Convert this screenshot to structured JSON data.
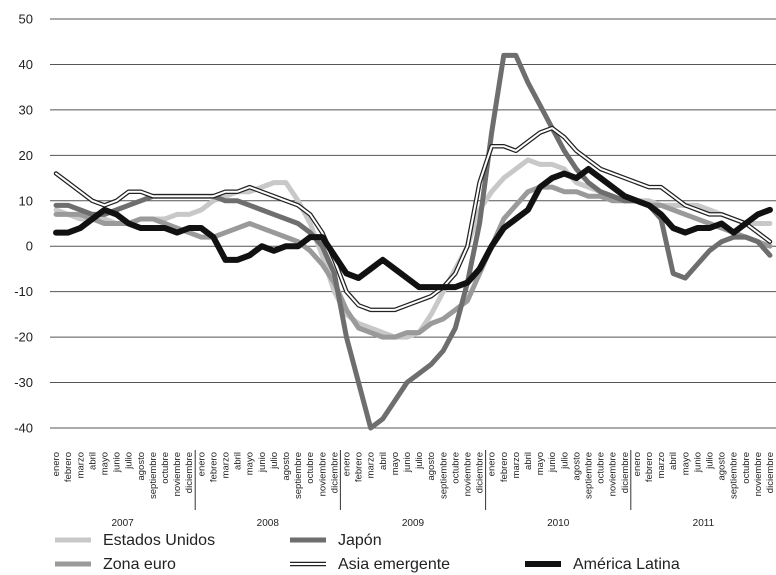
{
  "chart_data": {
    "type": "line",
    "title": "",
    "xlabel": "",
    "ylabel": "",
    "ylim": [
      -40,
      50
    ],
    "yticks": [
      -40,
      -30,
      -20,
      -10,
      0,
      10,
      20,
      30,
      40,
      50
    ],
    "grid": "horizontal",
    "legend_position": "bottom",
    "years": [
      "2007",
      "2008",
      "2009",
      "2010",
      "2011"
    ],
    "months": [
      "enero",
      "febrero",
      "marzo",
      "abril",
      "mayo",
      "junio",
      "julio",
      "agosto",
      "septiembre",
      "octubre",
      "noviembre",
      "diciembre"
    ],
    "series": [
      {
        "name": "Estados Unidos",
        "color": "#c8c8c8",
        "style": "thick",
        "values": [
          8,
          7,
          6,
          6,
          6,
          5,
          5,
          6,
          6,
          6,
          7,
          7,
          8,
          10,
          11,
          12,
          12,
          13,
          14,
          14,
          10,
          5,
          -2,
          -10,
          -15,
          -17,
          -18,
          -19,
          -20,
          -20,
          -19,
          -15,
          -10,
          -5,
          0,
          8,
          12,
          15,
          17,
          19,
          18,
          18,
          17,
          14,
          13,
          12,
          11,
          10,
          10,
          10,
          9,
          9,
          9,
          9,
          8,
          7,
          6,
          5,
          5,
          5
        ]
      },
      {
        "name": "Zona euro",
        "color": "#9a9a9a",
        "style": "thick",
        "values": [
          7,
          7,
          7,
          6,
          5,
          5,
          5,
          6,
          6,
          5,
          4,
          3,
          2,
          2,
          3,
          4,
          5,
          4,
          3,
          2,
          1,
          -1,
          -4,
          -8,
          -14,
          -18,
          -19,
          -20,
          -20,
          -19,
          -19,
          -17,
          -16,
          -14,
          -12,
          -6,
          0,
          6,
          9,
          12,
          13,
          13,
          12,
          12,
          11,
          11,
          10,
          10,
          10,
          9,
          9,
          8,
          7,
          6,
          5,
          4,
          3,
          2,
          1,
          0
        ]
      },
      {
        "name": "Japón",
        "color": "#6e6e6e",
        "style": "thick",
        "values": [
          9,
          9,
          8,
          7,
          7,
          8,
          9,
          10,
          11,
          11,
          11,
          11,
          11,
          11,
          10,
          10,
          9,
          8,
          7,
          6,
          5,
          3,
          0,
          -6,
          -20,
          -30,
          -40,
          -38,
          -34,
          -30,
          -28,
          -26,
          -23,
          -18,
          -8,
          5,
          25,
          42,
          42,
          36,
          31,
          26,
          21,
          17,
          14,
          12,
          11,
          10,
          10,
          9,
          6,
          -6,
          -7,
          -4,
          -1,
          1,
          2,
          2,
          1,
          -2
        ]
      },
      {
        "name": "Asia emergente",
        "color": "#222222",
        "style": "double",
        "values": [
          16,
          14,
          12,
          10,
          9,
          10,
          12,
          12,
          11,
          11,
          11,
          11,
          11,
          11,
          12,
          12,
          13,
          12,
          11,
          10,
          9,
          7,
          3,
          -3,
          -10,
          -13,
          -14,
          -14,
          -14,
          -13,
          -12,
          -11,
          -9,
          -6,
          0,
          14,
          22,
          22,
          21,
          23,
          25,
          26,
          24,
          21,
          19,
          17,
          16,
          15,
          14,
          13,
          13,
          11,
          9,
          8,
          7,
          7,
          6,
          5,
          3,
          1
        ]
      },
      {
        "name": "América Latina",
        "color": "#111111",
        "style": "bold",
        "values": [
          3,
          3,
          4,
          6,
          8,
          7,
          5,
          4,
          4,
          4,
          3,
          4,
          4,
          2,
          -3,
          -3,
          -2,
          0,
          -1,
          0,
          0,
          2,
          2,
          -2,
          -6,
          -7,
          -5,
          -3,
          -5,
          -7,
          -9,
          -9,
          -9,
          -9,
          -8,
          -5,
          0,
          4,
          6,
          8,
          13,
          15,
          16,
          15,
          17,
          15,
          13,
          11,
          10,
          9,
          7,
          4,
          3,
          4,
          4,
          5,
          3,
          5,
          7,
          8
        ]
      }
    ]
  }
}
